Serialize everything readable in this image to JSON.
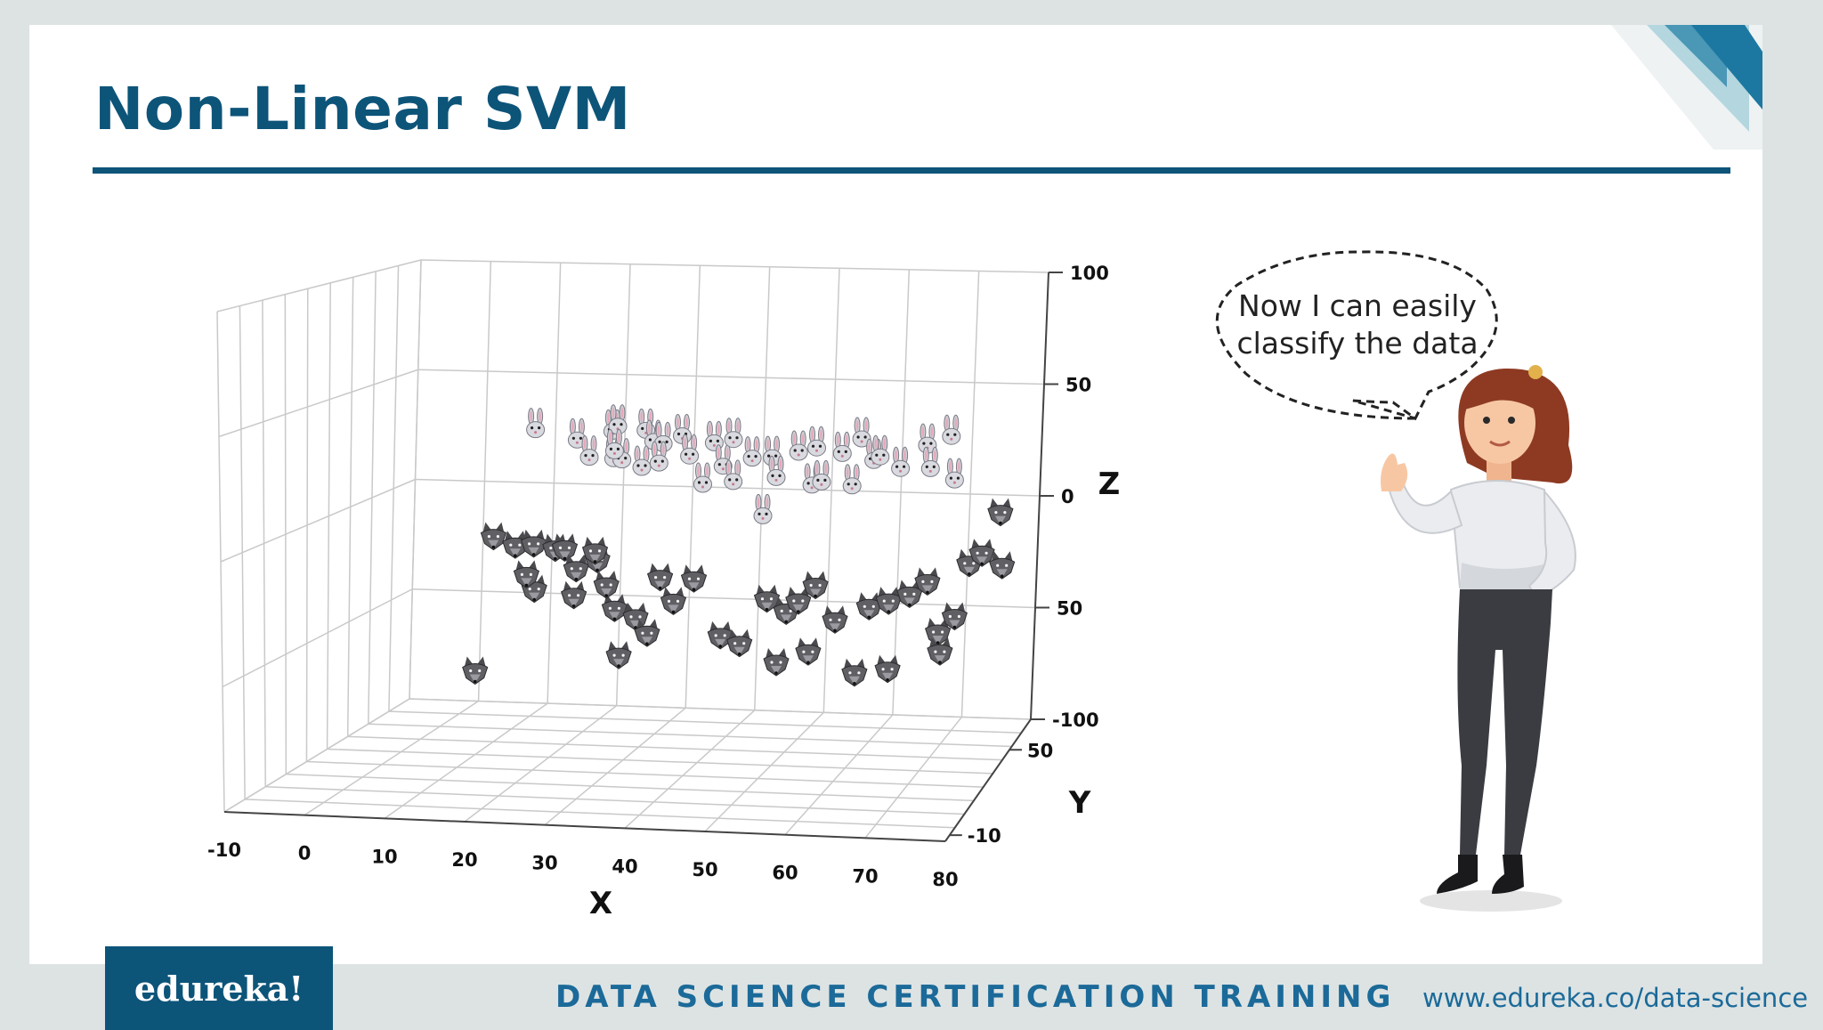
{
  "slide": {
    "title": "Non-Linear SVM",
    "speech_bubble": "Now I can easily classify the data",
    "footer": {
      "logo": "edureka!",
      "course": "DATA SCIENCE CERTIFICATION TRAINING",
      "url": "www.edureka.co/data-science"
    },
    "colors": {
      "brand": "#0d5479",
      "accent": "#1b6a99"
    }
  },
  "chart_data": {
    "type": "scatter",
    "projection": "3d",
    "title": "",
    "xlabel": "X",
    "ylabel": "Y",
    "zlabel": "Z",
    "x_ticks": [
      "-10",
      "0",
      "10",
      "20",
      "30",
      "40",
      "50",
      "60",
      "70",
      "80"
    ],
    "y_ticks": [
      "-10",
      "50"
    ],
    "z_ticks": [
      "100",
      "50",
      "0",
      "50",
      "-100"
    ],
    "xlim": [
      -10,
      80
    ],
    "ylim": [
      -10,
      80
    ],
    "zlim": [
      -100,
      100
    ],
    "grid": true,
    "series": [
      {
        "marker": "rabbit-icon",
        "color": "#b9b9c2",
        "points": [
          [
            17,
            45,
            46
          ],
          [
            22,
            48,
            40
          ],
          [
            26,
            52,
            42
          ],
          [
            28,
            46,
            48
          ],
          [
            31,
            50,
            44
          ],
          [
            25,
            42,
            36
          ],
          [
            27,
            48,
            32
          ],
          [
            29,
            44,
            34
          ],
          [
            31,
            55,
            36
          ],
          [
            34,
            47,
            40
          ],
          [
            36,
            50,
            42
          ],
          [
            38,
            45,
            36
          ],
          [
            40,
            52,
            38
          ],
          [
            42,
            48,
            30
          ],
          [
            44,
            45,
            44
          ],
          [
            40,
            44,
            24
          ],
          [
            43,
            50,
            22
          ],
          [
            46,
            48,
            34
          ],
          [
            48,
            52,
            32
          ],
          [
            50,
            44,
            28
          ],
          [
            52,
            50,
            36
          ],
          [
            55,
            47,
            40
          ],
          [
            54,
            49,
            22
          ],
          [
            56,
            45,
            26
          ],
          [
            58,
            50,
            36
          ],
          [
            60,
            46,
            24
          ],
          [
            61,
            48,
            44
          ],
          [
            62,
            52,
            32
          ],
          [
            64,
            45,
            38
          ],
          [
            66,
            50,
            30
          ],
          [
            70,
            48,
            42
          ],
          [
            71,
            44,
            34
          ],
          [
            73,
            50,
            45
          ],
          [
            74,
            46,
            28
          ],
          [
            48,
            45,
            10
          ],
          [
            30,
            52,
            26
          ],
          [
            28,
            44,
            38
          ],
          [
            33,
            49,
            30
          ]
        ]
      },
      {
        "marker": "wolf-icon",
        "color": "#5a5a5e",
        "points": [
          [
            12,
            42,
            -2
          ],
          [
            14,
            46,
            -8
          ],
          [
            17,
            44,
            -6
          ],
          [
            19,
            48,
            -10
          ],
          [
            21,
            45,
            -8
          ],
          [
            23,
            43,
            -16
          ],
          [
            25,
            47,
            -14
          ],
          [
            24,
            50,
            -12
          ],
          [
            18,
            40,
            -24
          ],
          [
            16,
            44,
            -20
          ],
          [
            22,
            46,
            -30
          ],
          [
            28,
            44,
            -34
          ],
          [
            30,
            48,
            -40
          ],
          [
            32,
            46,
            -46
          ],
          [
            34,
            45,
            -20
          ],
          [
            38,
            48,
            -22
          ],
          [
            29,
            42,
            -54
          ],
          [
            42,
            46,
            -46
          ],
          [
            45,
            44,
            -48
          ],
          [
            48,
            48,
            -30
          ],
          [
            51,
            46,
            -34
          ],
          [
            53,
            44,
            -28
          ],
          [
            55,
            46,
            -22
          ],
          [
            58,
            44,
            -36
          ],
          [
            62,
            48,
            -32
          ],
          [
            65,
            46,
            -28
          ],
          [
            68,
            45,
            -24
          ],
          [
            70,
            48,
            -20
          ],
          [
            72,
            44,
            -40
          ],
          [
            74,
            46,
            -34
          ],
          [
            76,
            46,
            -10
          ],
          [
            78,
            44,
            -4
          ],
          [
            81,
            42,
            -8
          ],
          [
            80,
            48,
            12
          ],
          [
            50,
            44,
            -56
          ],
          [
            54,
            46,
            -52
          ],
          [
            60,
            48,
            -62
          ],
          [
            65,
            45,
            -58
          ],
          [
            72,
            46,
            -50
          ],
          [
            10,
            40,
            -62
          ],
          [
            36,
            44,
            -30
          ],
          [
            26,
            48,
            -26
          ]
        ]
      }
    ]
  }
}
